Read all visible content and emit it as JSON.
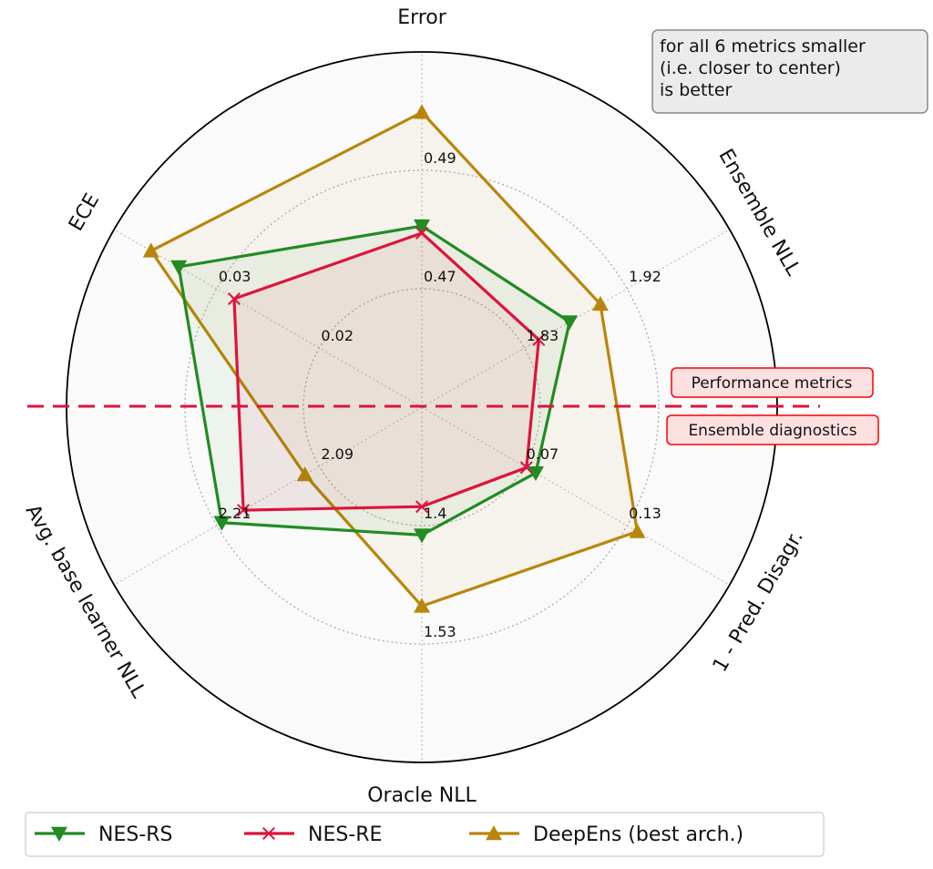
{
  "chart_data": {
    "type": "radar",
    "axes": [
      {
        "label": "Error",
        "ticks": [
          "0.47",
          "0.49"
        ]
      },
      {
        "label": "Ensemble NLL",
        "ticks": [
          "1.83",
          "1.92"
        ]
      },
      {
        "label": "1 - Pred. Disagr.",
        "ticks": [
          "0.07",
          "0.13"
        ]
      },
      {
        "label": "Oracle NLL",
        "ticks": [
          "1.4",
          "1.53"
        ]
      },
      {
        "label": "Avg. base learner NLL",
        "ticks": [
          "2.09",
          "2.21"
        ]
      },
      {
        "label": "ECE",
        "ticks": [
          "0.02",
          "0.03"
        ]
      }
    ],
    "radial_scale_note": "values are normalized radial fractions of the outer circle (ticks at 1/3 and 2/3)",
    "series": [
      {
        "name": "NES-RS",
        "color": "#228b22",
        "marker": "triangle-down",
        "values": [
          0.51,
          0.48,
          0.37,
          0.36,
          0.65,
          0.79
        ]
      },
      {
        "name": "NES-RE",
        "color": "#dc143c",
        "marker": "x",
        "values": [
          0.49,
          0.38,
          0.34,
          0.28,
          0.58,
          0.61
        ]
      },
      {
        "name": "DeepEns (best arch.)",
        "color": "#b8860b",
        "marker": "triangle-up",
        "values": [
          0.83,
          0.58,
          0.7,
          0.56,
          0.38,
          0.88
        ]
      }
    ],
    "note": "for all 6 metrics smaller\n(i.e. closer to center)\nis better",
    "divider_labels": {
      "top": "Performance metrics",
      "bottom": "Ensemble diagnostics"
    },
    "legend_position": "bottom"
  }
}
